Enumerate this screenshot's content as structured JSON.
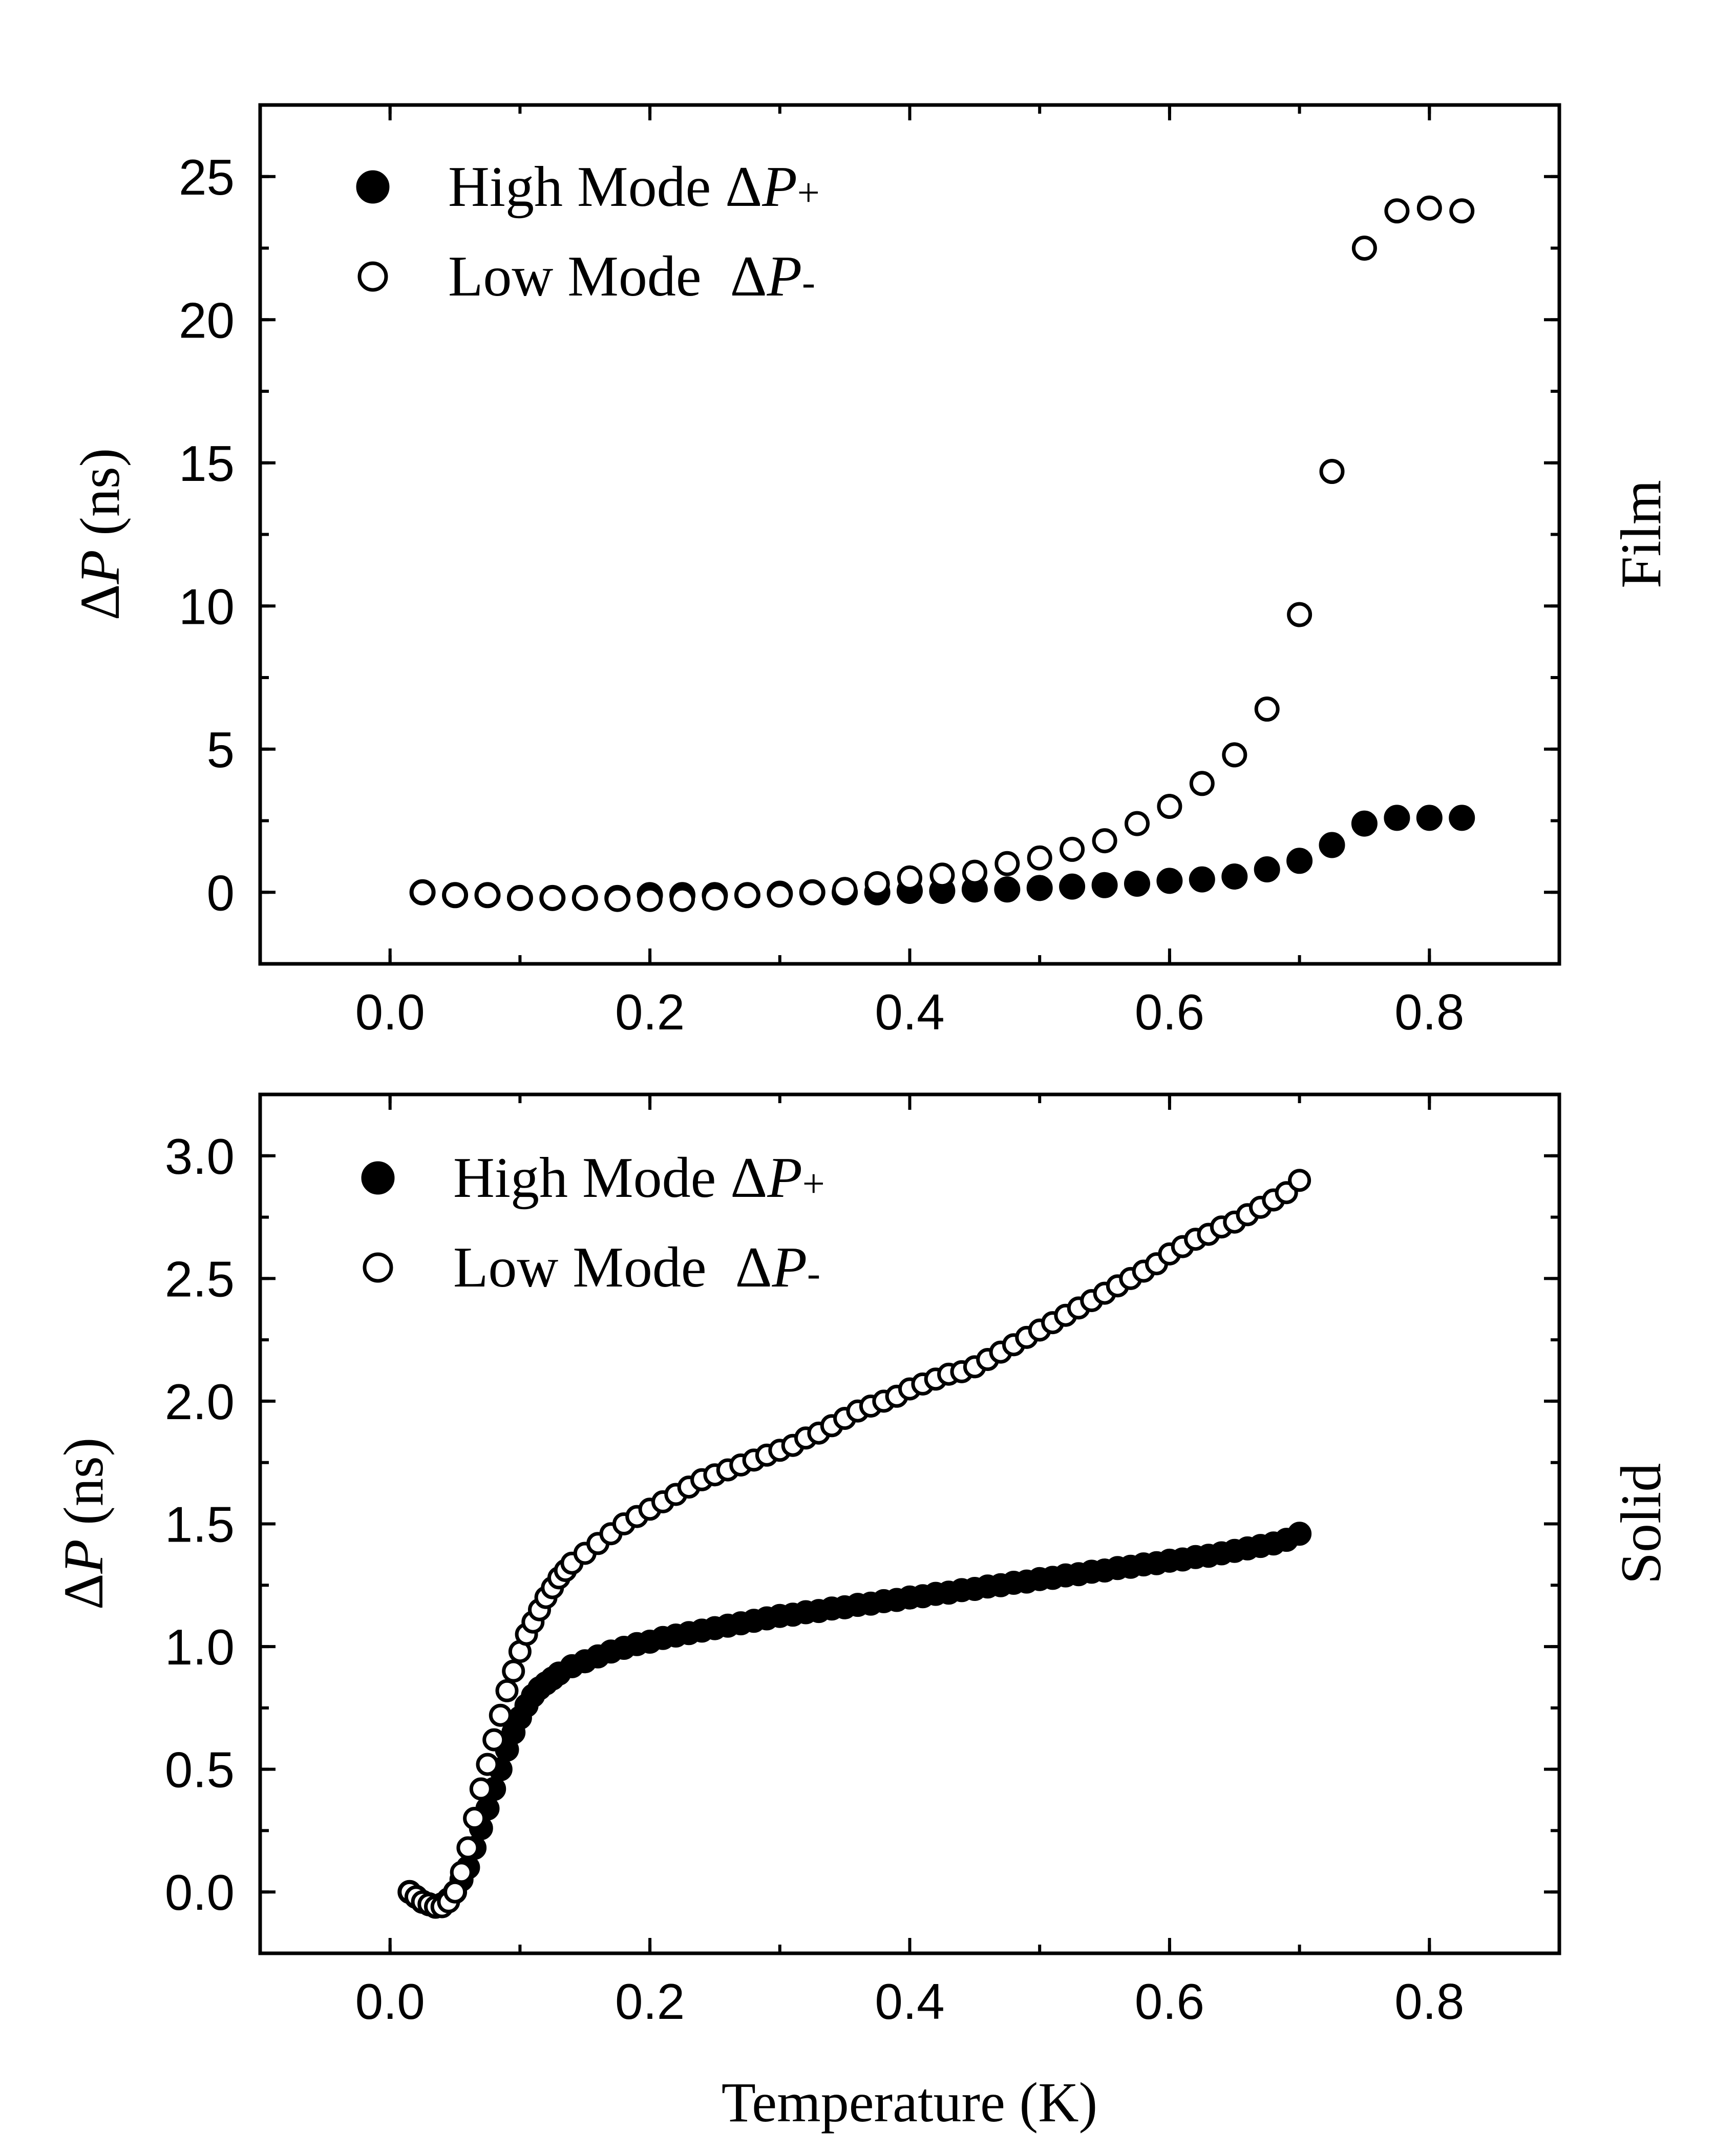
{
  "figure": {
    "x_axis_title": "Temperature (K)"
  },
  "chart_data": [
    {
      "type": "scatter",
      "panel": "top",
      "side_label": "Film",
      "ylabel_prefix": "Δ",
      "ylabel_var": "P",
      "ylabel_suffix": " (ns)",
      "xlabel": "",
      "xlim": [
        -0.1,
        0.9
      ],
      "ylim": [
        -2.5,
        27.5
      ],
      "x_ticks": [
        0.0,
        0.2,
        0.4,
        0.6,
        0.8
      ],
      "x_tick_labels": [
        "0.0",
        "0.2",
        "0.4",
        "0.6",
        "0.8"
      ],
      "x_minor_step": 0.1,
      "y_ticks": [
        0,
        5,
        10,
        15,
        20,
        25
      ],
      "y_tick_labels": [
        "0",
        "5",
        "10",
        "15",
        "20",
        "25"
      ],
      "y_minor_step": 2.5,
      "legend_position": "top-left",
      "series": [
        {
          "name": "High Mode ΔP+",
          "legend_text": "High Mode Δ",
          "legend_var": "P",
          "legend_sub": "+",
          "marker": "filled-circle",
          "x": [
            0.025,
            0.05,
            0.075,
            0.1,
            0.125,
            0.15,
            0.175,
            0.2,
            0.225,
            0.25,
            0.275,
            0.3,
            0.325,
            0.35,
            0.375,
            0.4,
            0.425,
            0.45,
            0.475,
            0.5,
            0.525,
            0.55,
            0.575,
            0.6,
            0.625,
            0.65,
            0.675,
            0.7,
            0.725,
            0.75,
            0.775,
            0.8,
            0.825
          ],
          "y": [
            0.0,
            -0.1,
            -0.1,
            -0.2,
            -0.2,
            -0.2,
            -0.2,
            -0.1,
            -0.1,
            -0.1,
            -0.1,
            -0.05,
            0.0,
            0.0,
            0.0,
            0.05,
            0.05,
            0.1,
            0.1,
            0.15,
            0.2,
            0.25,
            0.3,
            0.4,
            0.45,
            0.55,
            0.8,
            1.1,
            1.65,
            2.4,
            2.6,
            2.6,
            2.6
          ]
        },
        {
          "name": "Low Mode ΔP-",
          "legend_text": "Low Mode  Δ",
          "legend_var": "P",
          "legend_sub": "-",
          "marker": "open-circle",
          "x": [
            0.025,
            0.05,
            0.075,
            0.1,
            0.125,
            0.15,
            0.175,
            0.2,
            0.225,
            0.25,
            0.275,
            0.3,
            0.325,
            0.35,
            0.375,
            0.4,
            0.425,
            0.45,
            0.475,
            0.5,
            0.525,
            0.55,
            0.575,
            0.6,
            0.625,
            0.65,
            0.675,
            0.7,
            0.725,
            0.75,
            0.775,
            0.8,
            0.825
          ],
          "y": [
            0.0,
            -0.1,
            -0.1,
            -0.2,
            -0.2,
            -0.2,
            -0.25,
            -0.25,
            -0.25,
            -0.2,
            -0.1,
            -0.1,
            0.0,
            0.1,
            0.3,
            0.5,
            0.6,
            0.7,
            1.0,
            1.2,
            1.5,
            1.8,
            2.4,
            3.0,
            3.8,
            4.8,
            6.4,
            9.7,
            14.7,
            22.5,
            23.8,
            23.9,
            23.8
          ]
        }
      ]
    },
    {
      "type": "scatter",
      "panel": "bottom",
      "side_label": "Solid",
      "ylabel_prefix": "Δ",
      "ylabel_var": "P",
      "ylabel_suffix": " (ns)",
      "xlabel": "Temperature (K)",
      "xlim": [
        -0.1,
        0.9
      ],
      "ylim": [
        -0.25,
        3.25
      ],
      "x_ticks": [
        0.0,
        0.2,
        0.4,
        0.6,
        0.8
      ],
      "x_tick_labels": [
        "0.0",
        "0.2",
        "0.4",
        "0.6",
        "0.8"
      ],
      "x_minor_step": 0.1,
      "y_ticks": [
        0.0,
        0.5,
        1.0,
        1.5,
        2.0,
        2.5,
        3.0
      ],
      "y_tick_labels": [
        "0.0",
        "0.5",
        "1.0",
        "1.5",
        "2.0",
        "2.5",
        "3.0"
      ],
      "y_minor_step": 0.25,
      "legend_position": "top-left",
      "series": [
        {
          "name": "High Mode ΔP+",
          "legend_text": "High Mode Δ",
          "legend_var": "P",
          "legend_sub": "+",
          "marker": "filled-circle",
          "x": [
            0.015,
            0.02,
            0.025,
            0.03,
            0.035,
            0.04,
            0.045,
            0.05,
            0.055,
            0.06,
            0.065,
            0.07,
            0.075,
            0.08,
            0.085,
            0.09,
            0.095,
            0.1,
            0.105,
            0.11,
            0.115,
            0.12,
            0.125,
            0.13,
            0.14,
            0.15,
            0.16,
            0.17,
            0.18,
            0.19,
            0.2,
            0.21,
            0.22,
            0.23,
            0.24,
            0.25,
            0.26,
            0.27,
            0.28,
            0.29,
            0.3,
            0.31,
            0.32,
            0.33,
            0.34,
            0.35,
            0.36,
            0.37,
            0.38,
            0.39,
            0.4,
            0.41,
            0.42,
            0.43,
            0.44,
            0.45,
            0.46,
            0.47,
            0.48,
            0.49,
            0.5,
            0.51,
            0.52,
            0.53,
            0.54,
            0.55,
            0.56,
            0.57,
            0.58,
            0.59,
            0.6,
            0.61,
            0.62,
            0.63,
            0.64,
            0.65,
            0.66,
            0.67,
            0.68,
            0.69,
            0.7
          ],
          "y": [
            0.0,
            -0.02,
            -0.04,
            -0.05,
            -0.06,
            -0.05,
            -0.03,
            0.0,
            0.05,
            0.1,
            0.18,
            0.26,
            0.34,
            0.42,
            0.5,
            0.58,
            0.65,
            0.71,
            0.76,
            0.8,
            0.83,
            0.85,
            0.87,
            0.89,
            0.92,
            0.94,
            0.96,
            0.98,
            0.995,
            1.01,
            1.02,
            1.035,
            1.045,
            1.055,
            1.065,
            1.075,
            1.085,
            1.095,
            1.105,
            1.115,
            1.125,
            1.13,
            1.14,
            1.145,
            1.155,
            1.16,
            1.17,
            1.175,
            1.185,
            1.19,
            1.2,
            1.205,
            1.215,
            1.22,
            1.23,
            1.235,
            1.245,
            1.25,
            1.26,
            1.265,
            1.275,
            1.28,
            1.29,
            1.295,
            1.305,
            1.31,
            1.32,
            1.325,
            1.335,
            1.34,
            1.35,
            1.355,
            1.365,
            1.37,
            1.38,
            1.39,
            1.4,
            1.41,
            1.42,
            1.435,
            1.46
          ]
        },
        {
          "name": "Low Mode ΔP-",
          "legend_text": "Low Mode  Δ",
          "legend_var": "P",
          "legend_sub": "-",
          "marker": "open-circle",
          "x": [
            0.015,
            0.02,
            0.025,
            0.03,
            0.035,
            0.04,
            0.045,
            0.05,
            0.055,
            0.06,
            0.065,
            0.07,
            0.075,
            0.08,
            0.085,
            0.09,
            0.095,
            0.1,
            0.105,
            0.11,
            0.115,
            0.12,
            0.125,
            0.13,
            0.135,
            0.14,
            0.15,
            0.16,
            0.17,
            0.18,
            0.19,
            0.2,
            0.21,
            0.22,
            0.23,
            0.24,
            0.25,
            0.26,
            0.27,
            0.28,
            0.29,
            0.3,
            0.31,
            0.32,
            0.33,
            0.34,
            0.35,
            0.36,
            0.37,
            0.38,
            0.39,
            0.4,
            0.41,
            0.42,
            0.43,
            0.44,
            0.45,
            0.46,
            0.47,
            0.48,
            0.49,
            0.5,
            0.51,
            0.52,
            0.53,
            0.54,
            0.55,
            0.56,
            0.57,
            0.58,
            0.59,
            0.6,
            0.61,
            0.62,
            0.63,
            0.64,
            0.65,
            0.66,
            0.67,
            0.68,
            0.69,
            0.7
          ],
          "y": [
            0.0,
            -0.02,
            -0.04,
            -0.05,
            -0.06,
            -0.06,
            -0.04,
            0.0,
            0.08,
            0.18,
            0.3,
            0.42,
            0.52,
            0.62,
            0.72,
            0.82,
            0.9,
            0.98,
            1.05,
            1.1,
            1.15,
            1.2,
            1.24,
            1.28,
            1.31,
            1.34,
            1.38,
            1.42,
            1.46,
            1.5,
            1.53,
            1.56,
            1.59,
            1.62,
            1.65,
            1.68,
            1.7,
            1.72,
            1.74,
            1.76,
            1.78,
            1.8,
            1.82,
            1.85,
            1.87,
            1.9,
            1.93,
            1.96,
            1.98,
            2.0,
            2.02,
            2.05,
            2.07,
            2.09,
            2.11,
            2.12,
            2.14,
            2.17,
            2.2,
            2.23,
            2.26,
            2.29,
            2.32,
            2.35,
            2.38,
            2.41,
            2.44,
            2.47,
            2.5,
            2.53,
            2.56,
            2.6,
            2.63,
            2.66,
            2.68,
            2.71,
            2.73,
            2.76,
            2.79,
            2.82,
            2.85,
            2.9
          ]
        }
      ]
    }
  ]
}
